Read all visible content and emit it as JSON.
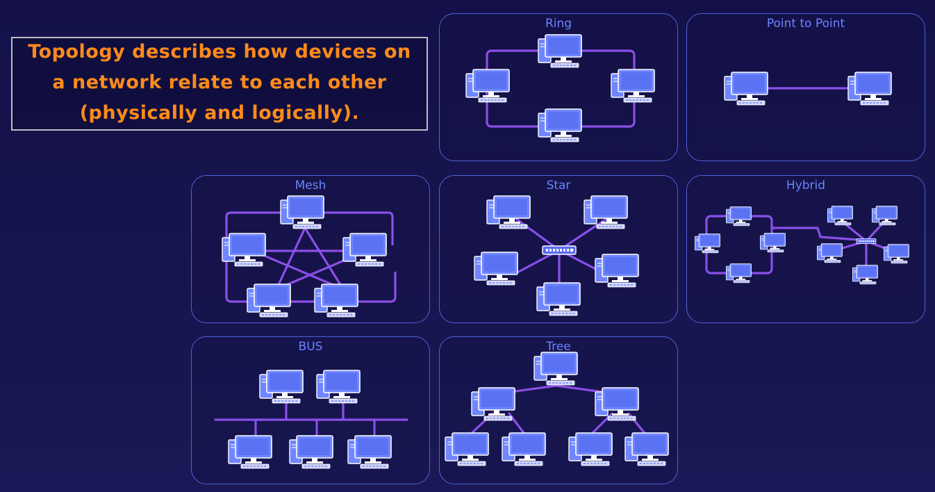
{
  "caption": {
    "text": "Topology describes how devices on\na network relate to each other\n(physically and logically)."
  },
  "topologies": {
    "ring": {
      "title": "Ring"
    },
    "point_to_point": {
      "title": "Point to Point"
    },
    "mesh": {
      "title": "Mesh"
    },
    "star": {
      "title": "Star"
    },
    "hybrid": {
      "title": "Hybrid"
    },
    "bus": {
      "title": "BUS"
    },
    "tree": {
      "title": "Tree"
    }
  },
  "colors": {
    "background": "#16134c",
    "caption_text": "#ff8a1c",
    "panel_border": "#4f63d6",
    "panel_title": "#6d84ff",
    "link": "#8a4fe8",
    "computer": "#6f86ff"
  },
  "icons": [
    "computer-icon",
    "switch-icon"
  ]
}
